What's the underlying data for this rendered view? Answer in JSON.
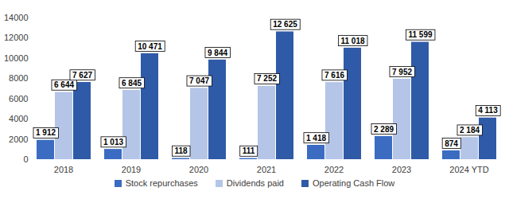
{
  "chart_data": {
    "type": "bar",
    "categories": [
      "2018",
      "2019",
      "2020",
      "2021",
      "2022",
      "2023",
      "2024 YTD"
    ],
    "series": [
      {
        "name": "Stock repurchases",
        "color": "#3b6cc2",
        "values": [
          1912,
          1013,
          118,
          111,
          1418,
          2289,
          874
        ],
        "value_labels": [
          "1 912",
          "1 013",
          "118",
          "111",
          "1 418",
          "2 289",
          "874"
        ]
      },
      {
        "name": "Dividends paid",
        "color": "#b4c5e7",
        "values": [
          6644,
          6845,
          7047,
          7252,
          7616,
          7952,
          2184
        ],
        "value_labels": [
          "6 644",
          "6 845",
          "7 047",
          "7 252",
          "7 616",
          "7 952",
          "2 184"
        ]
      },
      {
        "name": "Operating Cash Flow",
        "color": "#2f5aa8",
        "values": [
          7627,
          10471,
          9844,
          12625,
          11018,
          11599,
          4113
        ],
        "value_labels": [
          "7 627",
          "10 471",
          "9 844",
          "12 625",
          "11 018",
          "11 599",
          "4 113"
        ]
      }
    ],
    "ylim": [
      0,
      14000
    ],
    "yticks": [
      0,
      2000,
      4000,
      6000,
      8000,
      10000,
      12000,
      14000
    ],
    "grid": false,
    "data_labels": true,
    "legend": "bottom"
  }
}
